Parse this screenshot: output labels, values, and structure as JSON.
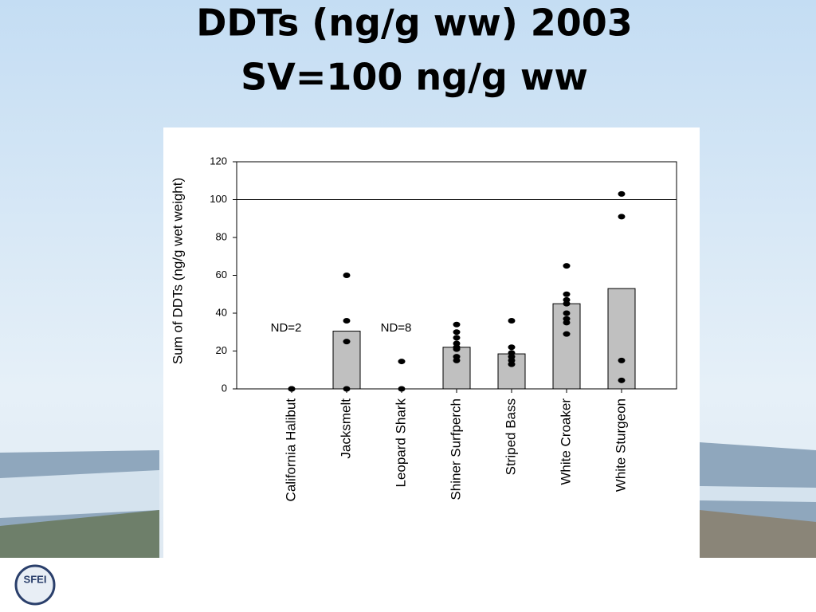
{
  "chart_data": {
    "type": "bar",
    "title": "DDTs (ng/g ww) 2003",
    "subtitle": "SV=100 ng/g ww",
    "y_label": "Sum of DDTs (ng/g wet weight)",
    "categories": [
      "California Halibut",
      "Jacksmelt",
      "Leopard Shark",
      "Shiner Surfperch",
      "Striped Bass",
      "White Croaker",
      "White Sturgeon"
    ],
    "values": [
      null,
      30.5,
      null,
      22,
      18.5,
      45,
      53
    ],
    "color": "#c0c0c0",
    "points": [
      [
        0,
        0
      ],
      [
        60,
        36,
        25,
        0
      ],
      [
        14.5,
        0
      ],
      [
        34,
        30,
        27,
        24,
        22,
        21,
        17,
        15
      ],
      [
        36,
        22,
        19,
        17,
        15,
        13
      ],
      [
        65,
        50,
        47,
        45,
        40,
        37,
        35,
        29
      ],
      [
        103,
        91,
        15,
        4.5
      ]
    ],
    "point_color": "#000000",
    "reference_line": 100,
    "annotations": [
      {
        "text": "ND=2",
        "category": 0
      },
      {
        "text": "ND=8",
        "category": 2
      }
    ],
    "ylim": [
      0,
      120
    ],
    "yticks": [
      0,
      20,
      40,
      60,
      80,
      100,
      120
    ]
  },
  "logo": "SFEI"
}
